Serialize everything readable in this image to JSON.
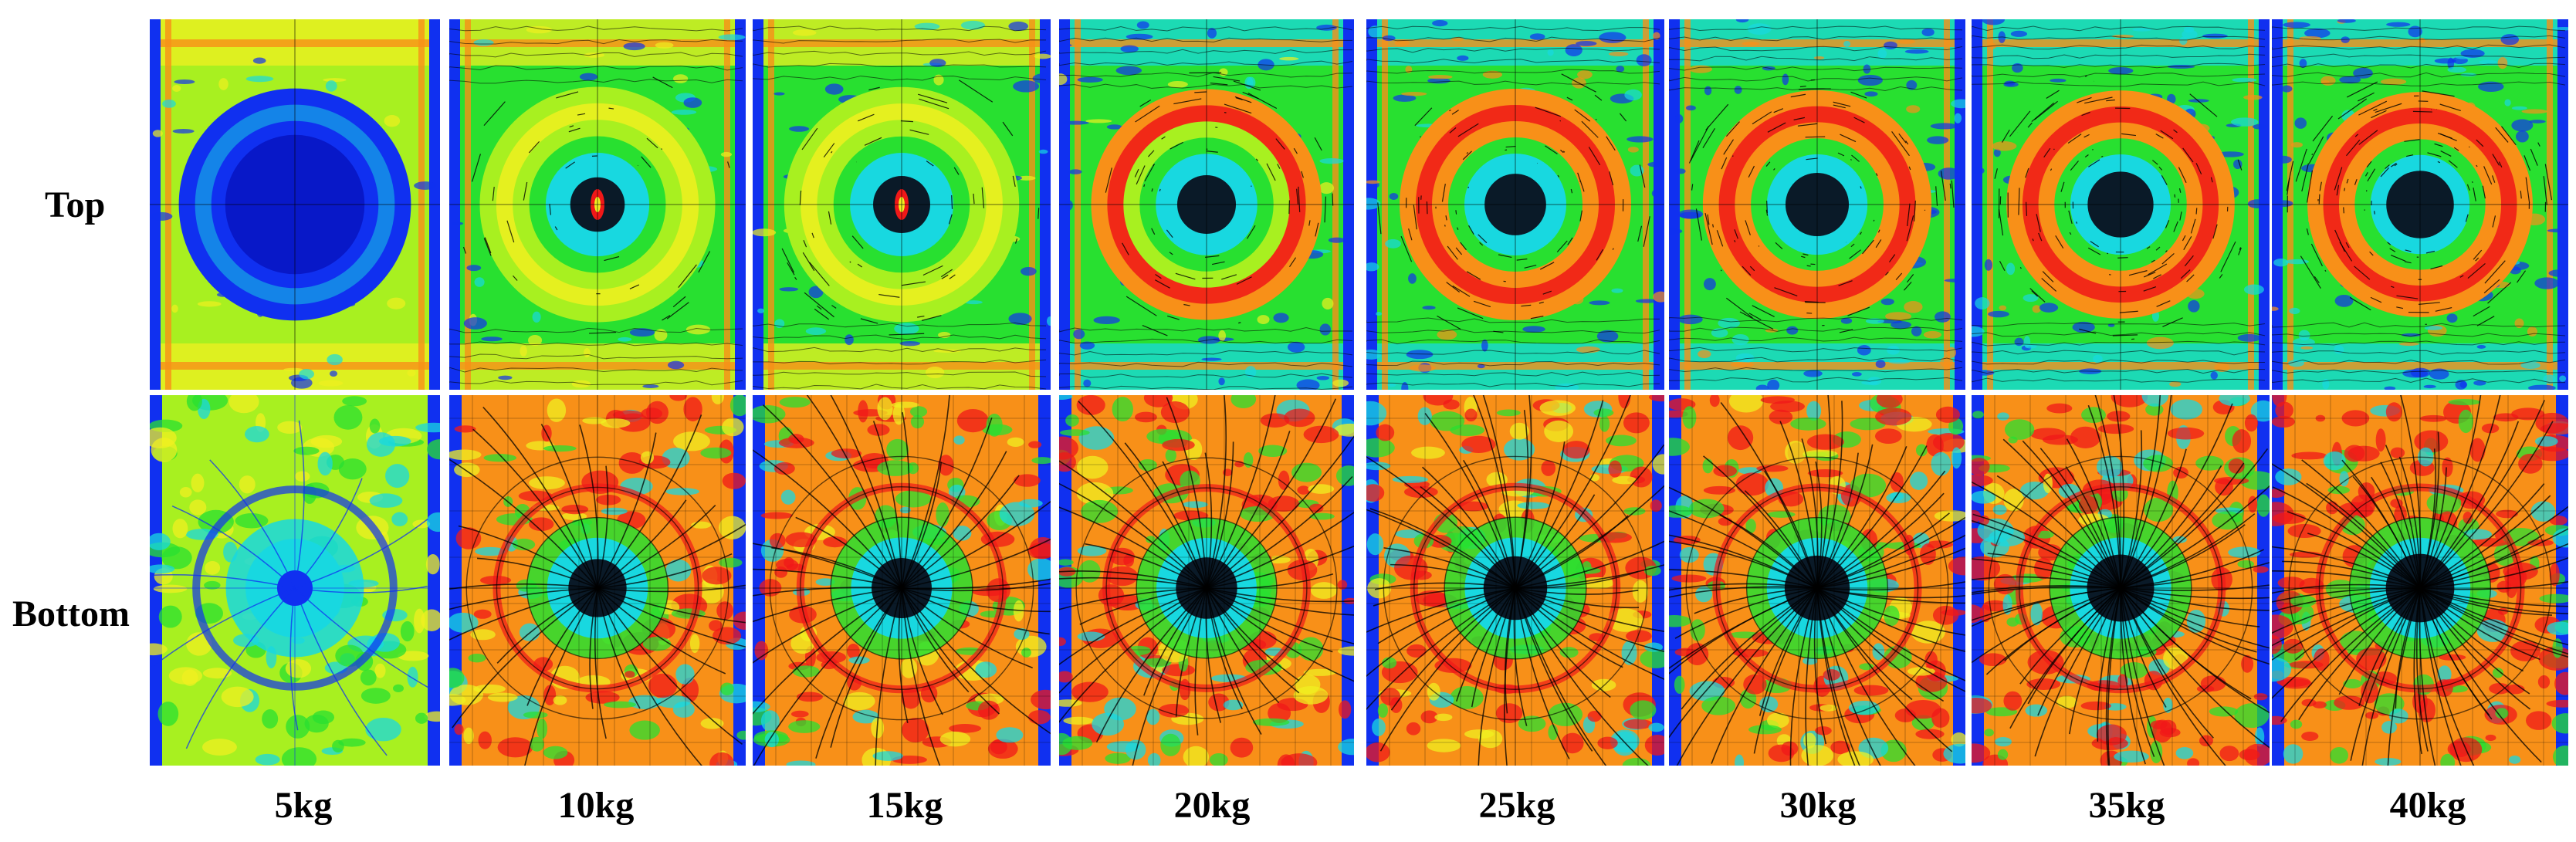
{
  "figure": {
    "row_labels": {
      "top": "Top",
      "bottom": "Bottom"
    },
    "column_labels": [
      "5kg",
      "10kg",
      "15kg",
      "20kg",
      "25kg",
      "30kg",
      "35kg",
      "40kg"
    ],
    "colors": {
      "blue": "#1030f0",
      "deep_blue": "#0818c8",
      "cyan": "#18d8e0",
      "green": "#28e030",
      "lime": "#a8f020",
      "yellow": "#f0f020",
      "orange": "#f89018",
      "red": "#f01818",
      "dark": "#0a1a28"
    }
  }
}
